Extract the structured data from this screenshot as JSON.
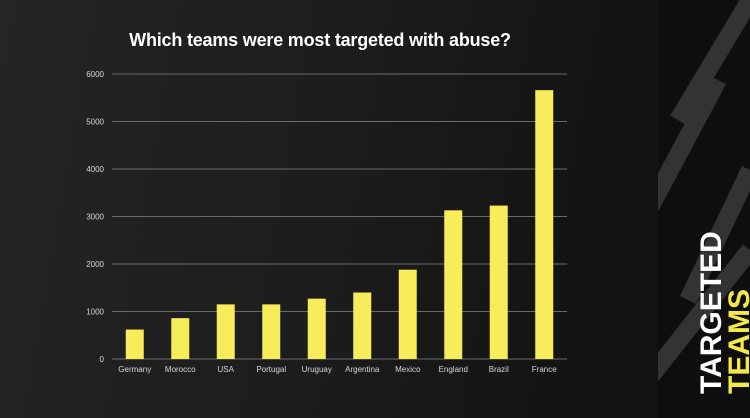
{
  "colors": {
    "bar": "#f7ec5a",
    "grid": "#6a6a6a",
    "text": "#d8d8d8",
    "title": "#ffffff",
    "accent": "#f5e84a",
    "stripe": "#333333"
  },
  "side_label": {
    "line1": "TARGETED",
    "line2": "TEAMS"
  },
  "chart_data": {
    "type": "bar",
    "title": "Which teams were most targeted with abuse?",
    "xlabel": "",
    "ylabel": "",
    "grid": true,
    "ylim": [
      0,
      6000
    ],
    "yticks": [
      0,
      1000,
      2000,
      3000,
      4000,
      5000,
      6000
    ],
    "categories": [
      "Germany",
      "Morocco",
      "USA",
      "Portugal",
      "Uruguay",
      "Argentina",
      "Mexico",
      "England",
      "Brazil",
      "France"
    ],
    "values": [
      620,
      860,
      1150,
      1150,
      1270,
      1400,
      1880,
      3130,
      3230,
      5660
    ]
  }
}
